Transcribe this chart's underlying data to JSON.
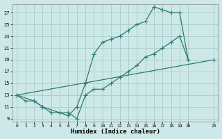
{
  "xlabel": "Humidex (Indice chaleur)",
  "bg_color": "#cce8e8",
  "grid_color": "#aacccc",
  "line_color": "#2d7a6e",
  "xlim": [
    -0.5,
    23.5
  ],
  "ylim": [
    8.5,
    28.5
  ],
  "xticks": [
    0,
    1,
    2,
    3,
    4,
    5,
    6,
    7,
    8,
    9,
    10,
    11,
    12,
    13,
    14,
    15,
    16,
    17,
    18,
    19,
    20,
    23
  ],
  "yticks": [
    9,
    11,
    13,
    15,
    17,
    19,
    21,
    23,
    25,
    27
  ],
  "line1_x": [
    0,
    1,
    2,
    3,
    4,
    5,
    6,
    7,
    8,
    9,
    10,
    11,
    12,
    13,
    14,
    15,
    16,
    17,
    18,
    19,
    20
  ],
  "line1_y": [
    13,
    12,
    12,
    11,
    10,
    10,
    9.5,
    11,
    15,
    20,
    22,
    22.5,
    23,
    24,
    25,
    25.5,
    28,
    27.5,
    27,
    27,
    19
  ],
  "line2_x": [
    0,
    2,
    3,
    5,
    6,
    7,
    8,
    9,
    10,
    11,
    12,
    13,
    14,
    15,
    16,
    17,
    18,
    19,
    20
  ],
  "line2_y": [
    13,
    12,
    11,
    10,
    10,
    9,
    13,
    14,
    14,
    15,
    16,
    17,
    18,
    19.5,
    20,
    21,
    22,
    23,
    19
  ],
  "line3_x": [
    0,
    23
  ],
  "line3_y": [
    13,
    19
  ]
}
